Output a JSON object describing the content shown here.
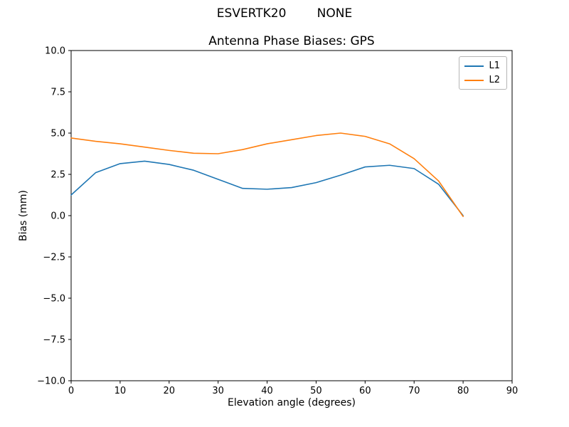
{
  "chart_data": {
    "type": "line",
    "suptitle": "ESVERTK20        NONE",
    "title": "Antenna Phase Biases: GPS",
    "xlabel": "Elevation angle (degrees)",
    "ylabel": "Bias (mm)",
    "xlim": [
      0,
      90
    ],
    "ylim": [
      -10,
      10
    ],
    "xticks": [
      0,
      10,
      20,
      30,
      40,
      50,
      60,
      70,
      80,
      90
    ],
    "xtick_labels": [
      "0",
      "10",
      "20",
      "30",
      "40",
      "50",
      "60",
      "70",
      "80",
      "90"
    ],
    "yticks": [
      -10,
      -7.5,
      -5,
      -2.5,
      0,
      2.5,
      5,
      7.5,
      10
    ],
    "ytick_labels": [
      "−10.0",
      "−7.5",
      "−5.0",
      "−2.5",
      "0.0",
      "2.5",
      "5.0",
      "7.5",
      "10.0"
    ],
    "grid": false,
    "legend_position": "upper right",
    "x": [
      0,
      5,
      10,
      15,
      20,
      25,
      30,
      35,
      40,
      45,
      50,
      55,
      60,
      65,
      70,
      75,
      80
    ],
    "series": [
      {
        "name": "L1",
        "color": "#1f77b4",
        "values": [
          1.25,
          2.6,
          3.15,
          3.3,
          3.1,
          2.75,
          2.2,
          1.65,
          1.6,
          1.7,
          2.0,
          2.45,
          2.95,
          3.05,
          2.85,
          1.9,
          0.0
        ]
      },
      {
        "name": "L2",
        "color": "#ff7f0e",
        "values": [
          4.7,
          4.5,
          4.35,
          4.15,
          3.95,
          3.78,
          3.75,
          4.0,
          4.35,
          4.6,
          4.85,
          5.0,
          4.8,
          4.35,
          3.45,
          2.1,
          -0.05
        ]
      }
    ]
  }
}
